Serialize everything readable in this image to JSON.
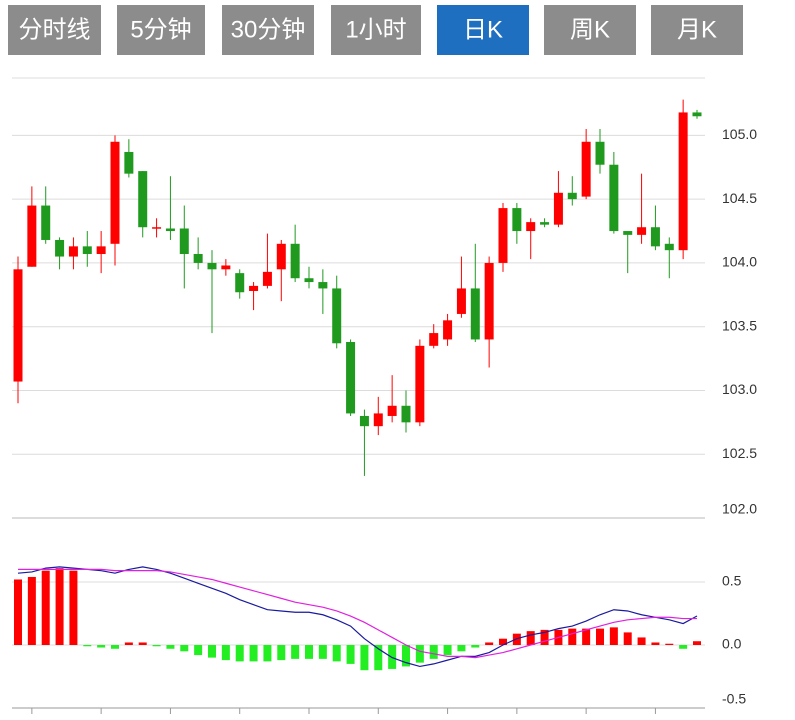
{
  "tabs": [
    "分时线",
    "5分钟",
    "30分钟",
    "1小时",
    "日K",
    "周K",
    "月K"
  ],
  "active_tab": 4,
  "chart_data": [
    {
      "type": "candlestick",
      "open": [
        103.07,
        103.97,
        104.45,
        104.18,
        104.05,
        104.13,
        104.07,
        104.15,
        104.87,
        104.72,
        104.27,
        104.27,
        104.27,
        104.07,
        104.0,
        103.95,
        103.92,
        103.78,
        103.82,
        103.95,
        104.15,
        103.88,
        103.85,
        103.8,
        103.38,
        102.8,
        102.72,
        102.8,
        102.88,
        102.75,
        103.35,
        103.4,
        103.6,
        103.8,
        103.4,
        104.0,
        104.43,
        104.25,
        104.32,
        104.3,
        104.55,
        104.52,
        104.95,
        104.77,
        104.25,
        104.22,
        104.28,
        104.15,
        104.1,
        105.18
      ],
      "close": [
        103.95,
        104.45,
        104.18,
        104.05,
        104.13,
        104.07,
        104.13,
        104.95,
        104.7,
        104.28,
        104.28,
        104.25,
        104.07,
        104.0,
        103.95,
        103.98,
        103.77,
        103.82,
        103.93,
        104.15,
        103.88,
        103.85,
        103.8,
        103.37,
        102.82,
        102.72,
        102.82,
        102.88,
        102.75,
        103.35,
        103.45,
        103.55,
        103.8,
        103.4,
        104.0,
        104.43,
        104.25,
        104.32,
        104.3,
        104.55,
        104.5,
        104.95,
        104.77,
        104.25,
        104.22,
        104.28,
        104.13,
        104.1,
        105.18,
        105.15
      ],
      "high": [
        104.05,
        104.6,
        104.6,
        104.2,
        104.2,
        104.25,
        104.25,
        105.0,
        104.97,
        104.72,
        104.35,
        104.68,
        104.45,
        104.2,
        104.1,
        104.03,
        103.95,
        103.85,
        104.23,
        104.18,
        104.3,
        103.97,
        103.95,
        103.9,
        103.4,
        102.85,
        102.95,
        103.12,
        103.0,
        103.4,
        103.52,
        103.6,
        104.05,
        104.15,
        104.05,
        104.47,
        104.47,
        104.35,
        104.35,
        104.72,
        104.68,
        105.05,
        105.05,
        104.87,
        104.25,
        104.7,
        104.45,
        104.2,
        105.28,
        105.2
      ],
      "low": [
        102.9,
        103.97,
        104.15,
        103.95,
        103.95,
        103.97,
        103.92,
        103.98,
        104.67,
        104.2,
        104.2,
        104.18,
        103.8,
        103.95,
        103.45,
        103.9,
        103.72,
        103.63,
        103.8,
        103.7,
        103.85,
        103.8,
        103.6,
        103.33,
        102.8,
        102.33,
        102.65,
        102.75,
        102.67,
        102.72,
        103.33,
        103.35,
        103.57,
        103.38,
        103.18,
        103.93,
        104.15,
        104.03,
        104.28,
        104.28,
        104.45,
        104.5,
        104.7,
        104.23,
        103.92,
        104.15,
        104.1,
        103.88,
        104.03,
        105.13
      ],
      "up_color": "#ff0000",
      "down_color": "#1f9a1f",
      "ylim": [
        102.0,
        105.45
      ],
      "yticks": [
        {
          "value": 102,
          "label": "102.0"
        },
        102.5,
        {
          "value": 103,
          "label": "103.0"
        },
        103.5,
        {
          "value": 104,
          "label": "104.0"
        },
        104.5,
        {
          "value": 105,
          "label": "105.0"
        }
      ],
      "grid": true
    },
    {
      "type": "macd",
      "values": [
        0.52,
        0.54,
        0.59,
        0.61,
        0.59,
        -0.01,
        -0.02,
        -0.03,
        0.02,
        0.02,
        -0.01,
        -0.03,
        -0.05,
        -0.08,
        -0.1,
        -0.12,
        -0.13,
        -0.13,
        -0.13,
        -0.12,
        -0.11,
        -0.11,
        -0.11,
        -0.13,
        -0.15,
        -0.2,
        -0.2,
        -0.19,
        -0.17,
        -0.14,
        -0.11,
        -0.08,
        -0.05,
        -0.02,
        0.02,
        0.05,
        0.09,
        0.11,
        0.12,
        0.12,
        0.13,
        0.13,
        0.13,
        0.14,
        0.1,
        0.06,
        0.02,
        0.01,
        -0.03,
        0.03
      ],
      "up_color": "#ff0000",
      "down_color": "#22ee22",
      "series": [
        {
          "color": "#1a1aa0",
          "values": [
            0.57,
            0.58,
            0.61,
            0.62,
            0.61,
            0.6,
            0.59,
            0.57,
            0.6,
            0.62,
            0.6,
            0.57,
            0.53,
            0.49,
            0.45,
            0.41,
            0.36,
            0.32,
            0.28,
            0.27,
            0.26,
            0.26,
            0.24,
            0.2,
            0.15,
            0.05,
            -0.03,
            -0.1,
            -0.14,
            -0.17,
            -0.15,
            -0.12,
            -0.09,
            -0.09,
            -0.06,
            0.0,
            0.05,
            0.08,
            0.1,
            0.13,
            0.15,
            0.19,
            0.24,
            0.28,
            0.27,
            0.24,
            0.22,
            0.2,
            0.17,
            0.23
          ]
        },
        {
          "color": "#e020e0",
          "values": [
            0.6,
            0.6,
            0.6,
            0.6,
            0.6,
            0.6,
            0.6,
            0.59,
            0.59,
            0.59,
            0.59,
            0.58,
            0.56,
            0.54,
            0.52,
            0.49,
            0.46,
            0.43,
            0.4,
            0.37,
            0.34,
            0.32,
            0.3,
            0.27,
            0.23,
            0.18,
            0.12,
            0.06,
            0.0,
            -0.05,
            -0.07,
            -0.09,
            -0.09,
            -0.1,
            -0.08,
            -0.06,
            -0.03,
            0.0,
            0.03,
            0.06,
            0.09,
            0.12,
            0.15,
            0.18,
            0.2,
            0.21,
            0.22,
            0.22,
            0.21,
            0.21
          ]
        }
      ],
      "ylim": [
        -0.5,
        1.0
      ],
      "yticks": [
        -0.5,
        {
          "value": 0,
          "label": "0.0"
        },
        0.5
      ],
      "grid": true
    }
  ]
}
